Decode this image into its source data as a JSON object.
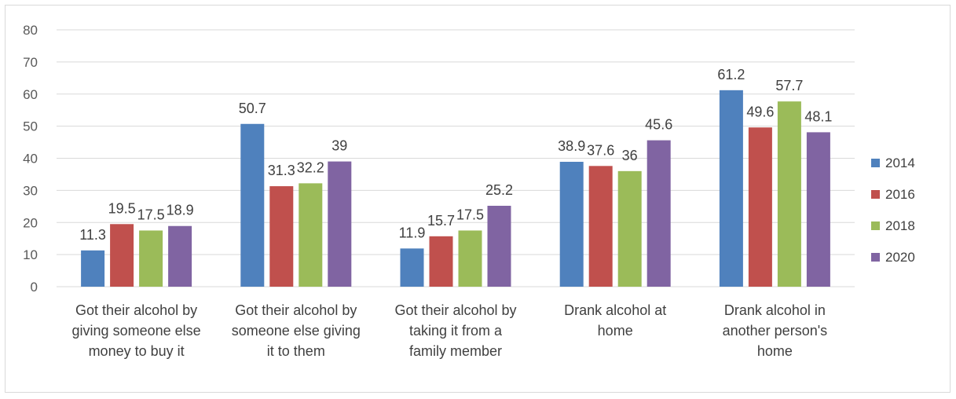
{
  "chart_data": {
    "type": "bar",
    "categories": [
      [
        "Got their alcohol by",
        "giving someone else",
        "money to buy it"
      ],
      [
        "Got their alcohol by",
        "someone else giving",
        "it to them"
      ],
      [
        "Got their alcohol by",
        "taking it from a",
        "family member"
      ],
      [
        "Drank alcohol at",
        "home"
      ],
      [
        "Drank alcohol in",
        "another person's",
        "home"
      ]
    ],
    "series": [
      {
        "name": "2014",
        "color": "#4f81bd",
        "values": [
          11.3,
          50.7,
          11.9,
          38.9,
          61.2
        ]
      },
      {
        "name": "2016",
        "color": "#c0504d",
        "values": [
          19.5,
          31.3,
          15.7,
          37.6,
          49.6
        ]
      },
      {
        "name": "2018",
        "color": "#9bbb59",
        "values": [
          17.5,
          32.2,
          17.5,
          36,
          57.7
        ]
      },
      {
        "name": "2020",
        "color": "#8064a2",
        "values": [
          18.9,
          39,
          25.2,
          45.6,
          48.1
        ]
      }
    ],
    "ylim": [
      0,
      80
    ],
    "yticks": [
      0,
      10,
      20,
      30,
      40,
      50,
      60,
      70,
      80
    ],
    "grid": true,
    "legend": "right",
    "data_labels": true,
    "title": "",
    "xlabel": "",
    "ylabel": ""
  }
}
